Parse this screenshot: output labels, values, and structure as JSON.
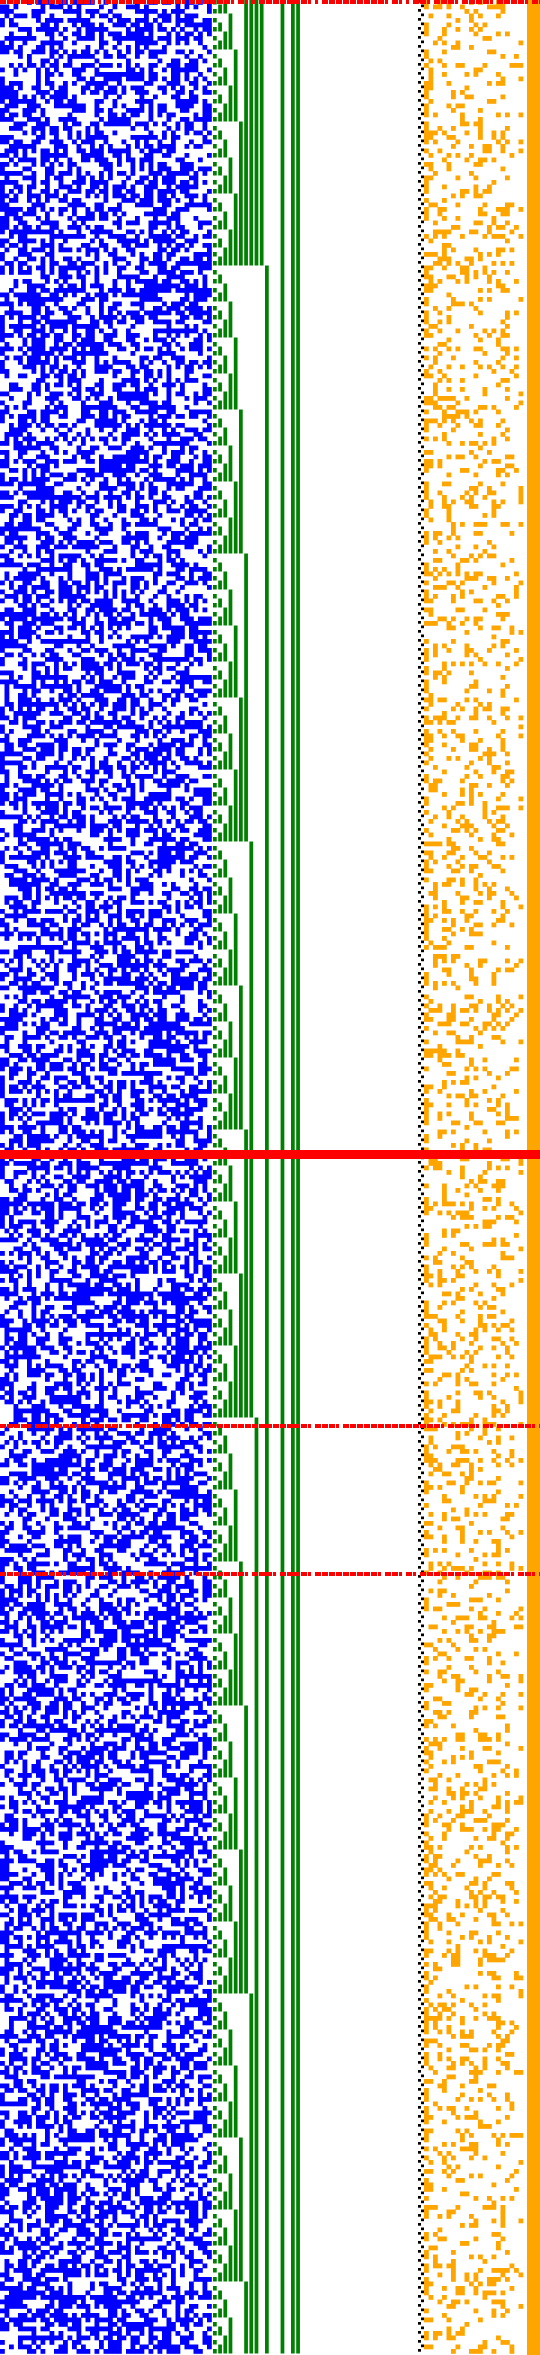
{
  "colors": {
    "background": "#ffffff",
    "noise": "#0000ff",
    "counter": "#008000",
    "separator": "#000000",
    "sparse": "#ffa500",
    "sparse_bar": "#ffa500",
    "marker": "#ff0000"
  },
  "regions": [
    {
      "name": "blue-noise-block",
      "color": "#0000ff",
      "density": 0.5
    },
    {
      "name": "green-counter-block",
      "color": "#008000",
      "bits": 20
    },
    {
      "name": "dotted-separator",
      "color": "#000000"
    },
    {
      "name": "orange-sparse-block",
      "color": "#ffa500",
      "density": 0.2
    }
  ],
  "marker_rows": [
    {
      "name": "marker-top",
      "thick": false
    },
    {
      "name": "marker-major",
      "thick": true
    },
    {
      "name": "marker-mid",
      "thick": false
    },
    {
      "name": "marker-low",
      "thick": false
    }
  ]
}
